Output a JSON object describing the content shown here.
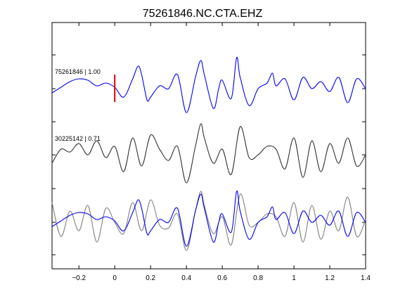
{
  "chart_data": {
    "type": "line",
    "title": "75261846.NC.CTA.EHZ",
    "xlabel": "",
    "ylabel": "",
    "xlim": [
      -0.35,
      1.4
    ],
    "xticks": [
      -0.2,
      0,
      0.2,
      0.4,
      0.6,
      0.8,
      1,
      1.2,
      1.4
    ],
    "xtick_labels": [
      "−0.2",
      "0",
      "0.2",
      "0.4",
      "0.6",
      "0.8",
      "1",
      "1.2",
      "1.4"
    ],
    "grid": false,
    "pick_marker": {
      "x": 0,
      "color": "#e00000"
    },
    "traces": [
      {
        "label": "75261846 | 1.00",
        "row": 1,
        "color": "#0000ff",
        "x": [
          -0.35,
          -0.3,
          -0.25,
          -0.2,
          -0.15,
          -0.1,
          -0.05,
          0.0,
          0.05,
          0.1,
          0.13,
          0.15,
          0.18,
          0.2,
          0.25,
          0.3,
          0.35,
          0.4,
          0.45,
          0.48,
          0.5,
          0.55,
          0.58,
          0.6,
          0.65,
          0.68,
          0.7,
          0.75,
          0.8,
          0.85,
          0.88,
          0.9,
          0.95,
          1.0,
          1.05,
          1.1,
          1.15,
          1.2,
          1.25,
          1.3,
          1.35,
          1.4
        ],
        "y": [
          -0.15,
          0.05,
          0.25,
          0.35,
          0.3,
          0.1,
          0.2,
          0.05,
          -0.3,
          0.35,
          0.8,
          0.5,
          -0.4,
          -0.3,
          0.1,
          0.0,
          0.5,
          -0.85,
          0.4,
          1.0,
          0.5,
          -0.7,
          0.0,
          0.3,
          -0.35,
          1.1,
          0.4,
          -0.6,
          0.0,
          0.2,
          0.55,
          0.1,
          0.35,
          -0.4,
          0.4,
          0.0,
          0.25,
          -0.1,
          0.4,
          -0.5,
          0.35,
          0.0
        ]
      },
      {
        "label": "30225142 | 0.71",
        "row": 2,
        "color": "#333333",
        "x": [
          -0.35,
          -0.3,
          -0.25,
          -0.2,
          -0.15,
          -0.1,
          -0.05,
          0.0,
          0.05,
          0.1,
          0.15,
          0.2,
          0.25,
          0.3,
          0.35,
          0.4,
          0.45,
          0.48,
          0.5,
          0.55,
          0.6,
          0.65,
          0.7,
          0.75,
          0.8,
          0.85,
          0.9,
          0.95,
          1.0,
          1.05,
          1.1,
          1.15,
          1.2,
          1.25,
          1.3,
          1.35,
          1.4
        ],
        "y": [
          -0.3,
          0.2,
          0.1,
          0.4,
          0.0,
          0.5,
          -0.1,
          0.3,
          -0.6,
          0.6,
          -0.4,
          0.7,
          0.2,
          -0.2,
          0.3,
          -1.0,
          0.3,
          1.1,
          0.6,
          -0.3,
          0.2,
          -0.7,
          1.0,
          -0.1,
          0.0,
          0.3,
          0.2,
          -0.5,
          0.6,
          -0.8,
          0.5,
          -0.6,
          0.4,
          -0.3,
          0.6,
          -0.4,
          0.0
        ]
      },
      {
        "label": "",
        "row": 3,
        "color": "#0000ff",
        "x": [
          -0.35,
          -0.3,
          -0.25,
          -0.2,
          -0.15,
          -0.1,
          -0.05,
          0.0,
          0.05,
          0.1,
          0.13,
          0.15,
          0.18,
          0.2,
          0.25,
          0.3,
          0.35,
          0.4,
          0.45,
          0.48,
          0.5,
          0.55,
          0.58,
          0.6,
          0.65,
          0.68,
          0.7,
          0.75,
          0.8,
          0.85,
          0.88,
          0.9,
          0.95,
          1.0,
          1.05,
          1.1,
          1.15,
          1.2,
          1.25,
          1.3,
          1.35,
          1.4
        ],
        "y": [
          -0.15,
          0.05,
          0.25,
          0.35,
          0.3,
          0.1,
          0.2,
          0.05,
          -0.3,
          0.35,
          0.8,
          0.5,
          -0.4,
          -0.3,
          0.1,
          0.0,
          0.5,
          -0.85,
          0.4,
          1.0,
          0.5,
          -0.7,
          0.0,
          0.3,
          -0.35,
          1.1,
          0.4,
          -0.6,
          0.0,
          0.2,
          0.55,
          0.1,
          0.35,
          -0.4,
          0.4,
          0.0,
          0.25,
          -0.1,
          0.4,
          -0.5,
          0.35,
          0.0
        ]
      },
      {
        "label": "",
        "row": 3,
        "color": "#808080",
        "x": [
          -0.35,
          -0.3,
          -0.25,
          -0.2,
          -0.15,
          -0.1,
          -0.05,
          0.0,
          0.05,
          0.1,
          0.15,
          0.2,
          0.25,
          0.3,
          0.35,
          0.4,
          0.45,
          0.48,
          0.5,
          0.55,
          0.6,
          0.65,
          0.7,
          0.75,
          0.8,
          0.85,
          0.9,
          0.95,
          1.0,
          1.05,
          1.1,
          1.15,
          1.2,
          1.25,
          1.3,
          1.35,
          1.4
        ],
        "y": [
          0.7,
          -0.5,
          0.4,
          -0.3,
          0.6,
          -0.7,
          0.5,
          0.0,
          -0.4,
          0.7,
          -0.3,
          0.8,
          -0.1,
          -0.2,
          0.3,
          -1.0,
          0.4,
          1.1,
          0.6,
          -0.4,
          0.2,
          -0.8,
          1.0,
          -0.1,
          0.0,
          0.3,
          0.2,
          -0.5,
          0.7,
          -0.7,
          0.6,
          -0.6,
          0.4,
          -0.3,
          0.9,
          -0.5,
          0.1
        ]
      }
    ]
  }
}
